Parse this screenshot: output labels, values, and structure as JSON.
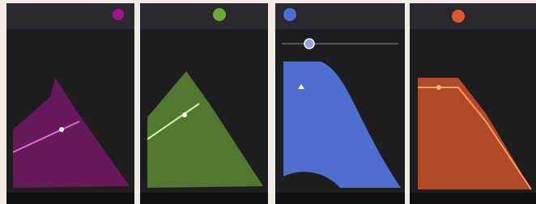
{
  "screens": [
    {
      "accent": "#a0168a"
    },
    {
      "accent": "#6fa83a"
    },
    {
      "accent": "#4f6fd0"
    },
    {
      "accent": "#e0582a"
    }
  ]
}
